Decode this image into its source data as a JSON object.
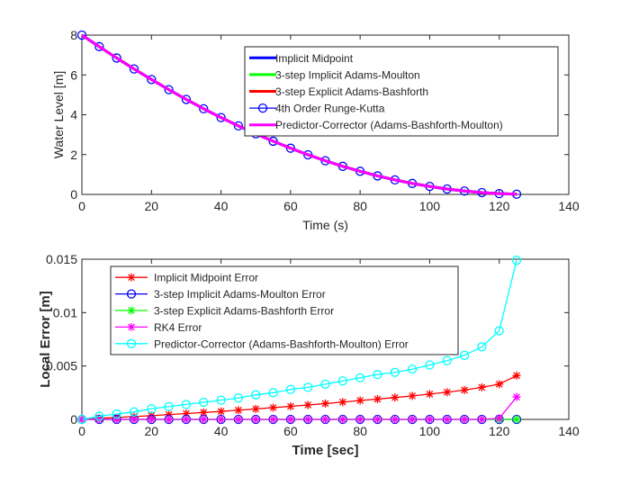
{
  "chart_data": [
    {
      "type": "line",
      "title": "",
      "xlabel": "Time (s)",
      "ylabel": "Water Level [m]",
      "xlim": [
        0,
        140
      ],
      "ylim": [
        0,
        8
      ],
      "xticks": [
        "0",
        "20",
        "40",
        "60",
        "80",
        "100",
        "120",
        "140"
      ],
      "yticks": [
        "0",
        "2",
        "4",
        "6",
        "8"
      ],
      "legend_position": "top-right",
      "x": [
        0,
        5,
        10,
        15,
        20,
        25,
        30,
        35,
        40,
        45,
        50,
        55,
        60,
        65,
        70,
        75,
        80,
        85,
        90,
        95,
        100,
        105,
        110,
        115,
        120,
        125
      ],
      "series": [
        {
          "name": "Implicit Midpoint",
          "color": "#0000ff",
          "marker": "none",
          "values": [
            8.0,
            7.42,
            6.85,
            6.3,
            5.77,
            5.26,
            4.77,
            4.3,
            3.86,
            3.44,
            3.04,
            2.67,
            2.32,
            1.99,
            1.69,
            1.41,
            1.16,
            0.93,
            0.73,
            0.55,
            0.4,
            0.27,
            0.17,
            0.09,
            0.04,
            0.01
          ]
        },
        {
          "name": "3-step Implicit Adams-Moulton",
          "color": "#00ff00",
          "marker": "none",
          "values": [
            8.0,
            7.42,
            6.85,
            6.3,
            5.77,
            5.26,
            4.77,
            4.3,
            3.86,
            3.44,
            3.04,
            2.67,
            2.32,
            1.99,
            1.69,
            1.41,
            1.16,
            0.93,
            0.73,
            0.55,
            0.4,
            0.27,
            0.17,
            0.09,
            0.04,
            0.01
          ]
        },
        {
          "name": "3-step Explicit Adams-Bashforth",
          "color": "#ff0000",
          "marker": "none",
          "values": [
            8.0,
            7.42,
            6.85,
            6.3,
            5.77,
            5.26,
            4.77,
            4.3,
            3.86,
            3.44,
            3.04,
            2.67,
            2.32,
            1.99,
            1.69,
            1.41,
            1.16,
            0.93,
            0.73,
            0.55,
            0.4,
            0.27,
            0.17,
            0.09,
            0.04,
            0.01
          ]
        },
        {
          "name": "4th Order Runge-Kutta",
          "color": "#0000ff",
          "marker": "circle",
          "values": [
            8.0,
            7.42,
            6.85,
            6.3,
            5.77,
            5.26,
            4.77,
            4.3,
            3.86,
            3.44,
            3.04,
            2.67,
            2.32,
            1.99,
            1.69,
            1.41,
            1.16,
            0.93,
            0.73,
            0.55,
            0.4,
            0.27,
            0.17,
            0.09,
            0.04,
            0.01
          ]
        },
        {
          "name": "Predictor-Corrector (Adams-Bashforth-Moulton)",
          "color": "#ff00ff",
          "marker": "none",
          "values": [
            8.0,
            7.42,
            6.85,
            6.3,
            5.77,
            5.26,
            4.77,
            4.3,
            3.86,
            3.44,
            3.04,
            2.67,
            2.32,
            1.99,
            1.69,
            1.41,
            1.16,
            0.93,
            0.73,
            0.55,
            0.4,
            0.27,
            0.17,
            0.09,
            0.04,
            0.01
          ]
        }
      ]
    },
    {
      "type": "line",
      "title": "",
      "xlabel": "Time [sec]",
      "ylabel": "Local Error [m]",
      "xlim": [
        0,
        140
      ],
      "ylim": [
        0,
        0.015
      ],
      "xticks": [
        "0",
        "20",
        "40",
        "60",
        "80",
        "100",
        "120",
        "140"
      ],
      "yticks": [
        "0",
        "0.005",
        "0.01",
        "0.015"
      ],
      "legend_position": "top-left",
      "x": [
        0,
        5,
        10,
        15,
        20,
        25,
        30,
        35,
        40,
        45,
        50,
        55,
        60,
        65,
        70,
        75,
        80,
        85,
        90,
        95,
        100,
        105,
        110,
        115,
        120,
        125
      ],
      "series": [
        {
          "name": "Implicit Midpoint Error",
          "color": "#ff0000",
          "marker": "star",
          "values": [
            0,
            0.0001,
            0.00018,
            0.00026,
            0.00035,
            0.00045,
            0.00055,
            0.00065,
            0.00075,
            0.00086,
            0.00098,
            0.0011,
            0.00122,
            0.00135,
            0.00148,
            0.00162,
            0.00177,
            0.0019,
            0.00205,
            0.0022,
            0.00237,
            0.00255,
            0.00275,
            0.003,
            0.0033,
            0.0041
          ]
        },
        {
          "name": "3-step Implicit Adams-Moulton Error",
          "color": "#0000ff",
          "marker": "circle",
          "values": [
            0,
            0,
            0,
            0,
            0,
            0,
            0,
            0,
            0,
            0,
            0,
            0,
            0,
            0,
            0,
            0,
            0,
            0,
            0,
            0,
            0,
            0,
            0,
            0,
            0,
            0
          ]
        },
        {
          "name": "3-step Explicit Adams-Bashforth Error",
          "color": "#00ff00",
          "marker": "star",
          "values": [
            0,
            0,
            0,
            0,
            0,
            0,
            0,
            0,
            0,
            0,
            0,
            0,
            0,
            0,
            0,
            0,
            0,
            0,
            0,
            0,
            0,
            0,
            0,
            0,
            0,
            0
          ]
        },
        {
          "name": "RK4 Error",
          "color": "#ff00ff",
          "marker": "star",
          "values": [
            0,
            0,
            0,
            0,
            0,
            0,
            0,
            0,
            0,
            0,
            0,
            0,
            0,
            0,
            0,
            0,
            0,
            0,
            0,
            0,
            0,
            0,
            0,
            0,
            0.0001,
            0.0021
          ]
        },
        {
          "name": "Predictor-Corrector (Adams-Bashforth-Moulton) Error",
          "color": "#00ffff",
          "marker": "circle",
          "values": [
            0,
            0.0003,
            0.0005,
            0.0007,
            0.001,
            0.0012,
            0.0014,
            0.0016,
            0.0018,
            0.002,
            0.0023,
            0.0025,
            0.0028,
            0.003,
            0.0033,
            0.0036,
            0.0039,
            0.0042,
            0.0044,
            0.0047,
            0.0051,
            0.0055,
            0.006,
            0.0068,
            0.0083,
            0.0149
          ]
        }
      ]
    }
  ]
}
